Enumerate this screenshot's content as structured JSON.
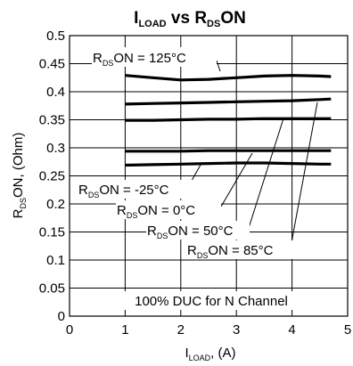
{
  "chart_data": {
    "type": "line",
    "title": {
      "main": "I",
      "main_sub": "LOAD",
      "mid": " vs R",
      "mid_sub": "DS",
      "end": "ON"
    },
    "xlabel": {
      "main": "I",
      "sub": "LOAD",
      "end": ", (A)"
    },
    "ylabel": {
      "main": "R",
      "sub": "DS",
      "end": "ON, (Ohm)"
    },
    "xlim": [
      0,
      5
    ],
    "ylim": [
      0,
      0.5
    ],
    "xticks": [
      "0",
      "1",
      "2",
      "3",
      "4",
      "5"
    ],
    "yticks": [
      "0",
      "0.05",
      "0.1",
      "0.15",
      "0.2",
      "0.25",
      "0.3",
      "0.35",
      "0.4",
      "0.45",
      "0.5"
    ],
    "xtick_values": [
      0,
      1,
      2,
      3,
      4,
      5
    ],
    "ytick_values": [
      0,
      0.05,
      0.1,
      0.15,
      0.2,
      0.25,
      0.3,
      0.35,
      0.4,
      0.45,
      0.5
    ],
    "grid": true,
    "series": [
      {
        "name": "-25°C",
        "points": [
          [
            1.0,
            0.269
          ],
          [
            1.5,
            0.27
          ],
          [
            2.0,
            0.271
          ],
          [
            2.5,
            0.272
          ],
          [
            3.0,
            0.273
          ],
          [
            3.5,
            0.273
          ],
          [
            4.0,
            0.272
          ],
          [
            4.5,
            0.271
          ],
          [
            4.7,
            0.271
          ]
        ]
      },
      {
        "name": "0°C",
        "points": [
          [
            1.0,
            0.294
          ],
          [
            1.5,
            0.294
          ],
          [
            2.0,
            0.294
          ],
          [
            2.5,
            0.295
          ],
          [
            3.0,
            0.295
          ],
          [
            3.5,
            0.295
          ],
          [
            4.0,
            0.295
          ],
          [
            4.5,
            0.295
          ],
          [
            4.7,
            0.295
          ]
        ]
      },
      {
        "name": "50°C",
        "points": [
          [
            1.0,
            0.349
          ],
          [
            1.5,
            0.349
          ],
          [
            2.0,
            0.35
          ],
          [
            2.5,
            0.351
          ],
          [
            3.0,
            0.351
          ],
          [
            3.5,
            0.352
          ],
          [
            4.0,
            0.352
          ],
          [
            4.5,
            0.352
          ],
          [
            4.7,
            0.352
          ]
        ]
      },
      {
        "name": "85°C",
        "points": [
          [
            1.0,
            0.378
          ],
          [
            1.5,
            0.379
          ],
          [
            2.0,
            0.38
          ],
          [
            2.5,
            0.381
          ],
          [
            3.0,
            0.382
          ],
          [
            3.5,
            0.383
          ],
          [
            4.0,
            0.384
          ],
          [
            4.5,
            0.386
          ],
          [
            4.7,
            0.387
          ]
        ]
      },
      {
        "name": "125°C",
        "points": [
          [
            1.0,
            0.429
          ],
          [
            1.5,
            0.425
          ],
          [
            2.0,
            0.421
          ],
          [
            2.5,
            0.422
          ],
          [
            3.0,
            0.425
          ],
          [
            3.5,
            0.428
          ],
          [
            4.0,
            0.429
          ],
          [
            4.5,
            0.428
          ],
          [
            4.7,
            0.427
          ]
        ]
      }
    ],
    "annotations": [
      {
        "main": "R",
        "sub": "DS",
        "end": "ON = 125°C"
      },
      {
        "main": "R",
        "sub": "DS",
        "end": "ON = -25°C"
      },
      {
        "main": "R",
        "sub": "DS",
        "end": "ON = 0°C"
      },
      {
        "main": "R",
        "sub": "DS",
        "end": "ON = 50°C"
      },
      {
        "main": "R",
        "sub": "DS",
        "end": "ON = 85°C"
      }
    ],
    "note": "100% DUC for N Channel"
  }
}
